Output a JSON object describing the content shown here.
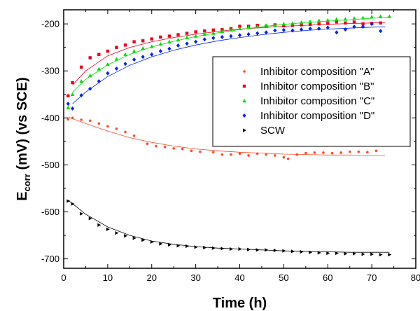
{
  "chart_data": {
    "type": "scatter",
    "xlabel": "Time (h)",
    "ylabel_main": "E",
    "ylabel_sub": "corr",
    "ylabel_rest": " (mV) (vs SCE)",
    "xlim": [
      0,
      80
    ],
    "ylim": [
      -720,
      -170
    ],
    "xticks": [
      0,
      10,
      20,
      30,
      40,
      50,
      60,
      70,
      80
    ],
    "yticks": [
      -700,
      -600,
      -500,
      -400,
      -300,
      -200
    ],
    "grid": false,
    "legend_position": "upper-right",
    "series": [
      {
        "name": "Inhibitor composition \"A\"",
        "color": "#ff4a24",
        "marker": "circle",
        "points": [
          [
            1,
            -403
          ],
          [
            2,
            -400
          ],
          [
            4,
            -404
          ],
          [
            6,
            -406
          ],
          [
            8,
            -412
          ],
          [
            10,
            -418
          ],
          [
            12,
            -423
          ],
          [
            14,
            -430
          ],
          [
            16,
            -438
          ],
          [
            19,
            -455
          ],
          [
            21,
            -460
          ],
          [
            23,
            -462
          ],
          [
            25,
            -465
          ],
          [
            27,
            -466
          ],
          [
            29,
            -470
          ],
          [
            31,
            -472
          ],
          [
            34,
            -473
          ],
          [
            36,
            -478
          ],
          [
            38,
            -478
          ],
          [
            40,
            -476
          ],
          [
            42,
            -480
          ],
          [
            44,
            -476
          ],
          [
            46,
            -478
          ],
          [
            48,
            -480
          ],
          [
            50,
            -484
          ],
          [
            51,
            -487
          ],
          [
            53,
            -478
          ],
          [
            55,
            -475
          ],
          [
            57,
            -474
          ],
          [
            59,
            -474
          ],
          [
            61,
            -475
          ],
          [
            63,
            -474
          ],
          [
            65,
            -472
          ],
          [
            67,
            -472
          ],
          [
            69,
            -473
          ],
          [
            71,
            -470
          ]
        ],
        "fit": [
          [
            1,
            -398
          ],
          [
            5,
            -412
          ],
          [
            10,
            -428
          ],
          [
            15,
            -442
          ],
          [
            20,
            -452
          ],
          [
            25,
            -460
          ],
          [
            30,
            -466
          ],
          [
            35,
            -470
          ],
          [
            40,
            -473
          ],
          [
            45,
            -475
          ],
          [
            50,
            -477
          ],
          [
            55,
            -478
          ],
          [
            60,
            -479
          ],
          [
            65,
            -479
          ],
          [
            70,
            -480
          ],
          [
            73,
            -480
          ]
        ]
      },
      {
        "name": "Inhibitor composition \"B\"",
        "color": "#e8001c",
        "marker": "square",
        "points": [
          [
            1,
            -353
          ],
          [
            2,
            -325
          ],
          [
            4,
            -292
          ],
          [
            6,
            -272
          ],
          [
            8,
            -265
          ],
          [
            10,
            -258
          ],
          [
            12,
            -250
          ],
          [
            14,
            -245
          ],
          [
            16,
            -238
          ],
          [
            18,
            -236
          ],
          [
            20,
            -232
          ],
          [
            22,
            -228
          ],
          [
            24,
            -226
          ],
          [
            26,
            -223
          ],
          [
            28,
            -220
          ],
          [
            30,
            -217
          ],
          [
            32,
            -215
          ],
          [
            34,
            -213
          ],
          [
            36,
            -212
          ],
          [
            38,
            -210
          ],
          [
            40,
            -205
          ],
          [
            42,
            -205
          ],
          [
            44,
            -203
          ],
          [
            46,
            -205
          ],
          [
            48,
            -202
          ],
          [
            50,
            -204
          ],
          [
            52,
            -203
          ],
          [
            54,
            -202
          ],
          [
            56,
            -201
          ],
          [
            58,
            -200
          ],
          [
            60,
            -199
          ],
          [
            62,
            -196
          ],
          [
            64,
            -198
          ],
          [
            66,
            -196
          ],
          [
            68,
            -200
          ],
          [
            70,
            -199
          ],
          [
            72,
            -198
          ]
        ],
        "fit": [
          [
            2,
            -330
          ],
          [
            5,
            -300
          ],
          [
            10,
            -268
          ],
          [
            15,
            -250
          ],
          [
            20,
            -238
          ],
          [
            25,
            -229
          ],
          [
            30,
            -222
          ],
          [
            35,
            -216
          ],
          [
            40,
            -211
          ],
          [
            45,
            -208
          ],
          [
            50,
            -205
          ],
          [
            55,
            -203
          ],
          [
            60,
            -201
          ],
          [
            65,
            -199
          ],
          [
            70,
            -198
          ],
          [
            73,
            -197
          ]
        ]
      },
      {
        "name": "Inhibitor composition \"C\"",
        "color": "#00dd00",
        "marker": "triangle",
        "points": [
          [
            1,
            -378
          ],
          [
            2,
            -350
          ],
          [
            4,
            -322
          ],
          [
            6,
            -310
          ],
          [
            8,
            -296
          ],
          [
            10,
            -286
          ],
          [
            12,
            -275
          ],
          [
            14,
            -265
          ],
          [
            16,
            -258
          ],
          [
            18,
            -252
          ],
          [
            20,
            -248
          ],
          [
            22,
            -243
          ],
          [
            24,
            -238
          ],
          [
            26,
            -234
          ],
          [
            28,
            -229
          ],
          [
            30,
            -226
          ],
          [
            32,
            -222
          ],
          [
            34,
            -220
          ],
          [
            36,
            -216
          ],
          [
            38,
            -213
          ],
          [
            40,
            -210
          ],
          [
            42,
            -207
          ],
          [
            44,
            -206
          ],
          [
            46,
            -203
          ],
          [
            48,
            -203
          ],
          [
            50,
            -200
          ],
          [
            52,
            -199
          ],
          [
            54,
            -197
          ],
          [
            56,
            -195
          ],
          [
            58,
            -193
          ],
          [
            60,
            -192
          ],
          [
            62,
            -190
          ],
          [
            64,
            -190
          ],
          [
            66,
            -188
          ],
          [
            68,
            -187
          ],
          [
            70,
            -185
          ],
          [
            72,
            -184
          ],
          [
            74,
            -184
          ]
        ],
        "fit": [
          [
            2,
            -345
          ],
          [
            5,
            -318
          ],
          [
            10,
            -287
          ],
          [
            15,
            -265
          ],
          [
            20,
            -249
          ],
          [
            25,
            -237
          ],
          [
            30,
            -227
          ],
          [
            35,
            -219
          ],
          [
            40,
            -212
          ],
          [
            45,
            -206
          ],
          [
            50,
            -201
          ],
          [
            55,
            -197
          ],
          [
            60,
            -194
          ],
          [
            65,
            -191
          ],
          [
            70,
            -188
          ],
          [
            74,
            -186
          ]
        ]
      },
      {
        "name": "Inhibitor composition \"D\"",
        "color": "#0022ee",
        "marker": "diamond",
        "points": [
          [
            1,
            -370
          ],
          [
            2,
            -380
          ],
          [
            4,
            -352
          ],
          [
            6,
            -338
          ],
          [
            8,
            -322
          ],
          [
            10,
            -305
          ],
          [
            12,
            -295
          ],
          [
            14,
            -285
          ],
          [
            16,
            -276
          ],
          [
            18,
            -270
          ],
          [
            20,
            -265
          ],
          [
            22,
            -258
          ],
          [
            24,
            -253
          ],
          [
            26,
            -246
          ],
          [
            28,
            -242
          ],
          [
            30,
            -238
          ],
          [
            32,
            -233
          ],
          [
            34,
            -230
          ],
          [
            36,
            -228
          ],
          [
            38,
            -226
          ],
          [
            40,
            -224
          ],
          [
            42,
            -222
          ],
          [
            44,
            -220
          ],
          [
            46,
            -218
          ],
          [
            48,
            -214
          ],
          [
            50,
            -213
          ],
          [
            52,
            -214
          ],
          [
            54,
            -212
          ],
          [
            56,
            -210
          ],
          [
            58,
            -210
          ],
          [
            60,
            -208
          ],
          [
            62,
            -218
          ],
          [
            64,
            -212
          ],
          [
            66,
            -206
          ],
          [
            68,
            -206
          ],
          [
            70,
            -200
          ],
          [
            72,
            -215
          ]
        ],
        "fit": [
          [
            2,
            -370
          ],
          [
            5,
            -345
          ],
          [
            10,
            -312
          ],
          [
            15,
            -288
          ],
          [
            20,
            -270
          ],
          [
            25,
            -256
          ],
          [
            30,
            -245
          ],
          [
            35,
            -236
          ],
          [
            40,
            -229
          ],
          [
            45,
            -223
          ],
          [
            50,
            -218
          ],
          [
            55,
            -214
          ],
          [
            60,
            -211
          ],
          [
            65,
            -209
          ],
          [
            70,
            -207
          ],
          [
            73,
            -206
          ]
        ]
      },
      {
        "name": "SCW",
        "color": "#000000",
        "marker": "right-triangle",
        "points": [
          [
            1,
            -577
          ],
          [
            2,
            -583
          ],
          [
            4,
            -604
          ],
          [
            6,
            -614
          ],
          [
            8,
            -628
          ],
          [
            10,
            -637
          ],
          [
            12,
            -645
          ],
          [
            14,
            -651
          ],
          [
            16,
            -656
          ],
          [
            18,
            -660
          ],
          [
            20,
            -664
          ],
          [
            22,
            -668
          ],
          [
            24,
            -670
          ],
          [
            26,
            -672
          ],
          [
            28,
            -673
          ],
          [
            30,
            -675
          ],
          [
            32,
            -676
          ],
          [
            34,
            -677
          ],
          [
            36,
            -678
          ],
          [
            38,
            -679
          ],
          [
            40,
            -679
          ],
          [
            42,
            -680
          ],
          [
            44,
            -681
          ],
          [
            46,
            -681
          ],
          [
            48,
            -682
          ],
          [
            50,
            -683
          ],
          [
            52,
            -684
          ],
          [
            54,
            -685
          ],
          [
            56,
            -686
          ],
          [
            58,
            -687
          ],
          [
            60,
            -688
          ],
          [
            62,
            -688
          ],
          [
            64,
            -689
          ],
          [
            66,
            -689
          ],
          [
            68,
            -690
          ],
          [
            70,
            -690
          ],
          [
            72,
            -691
          ],
          [
            74,
            -691
          ]
        ],
        "fit": [
          [
            1,
            -575
          ],
          [
            5,
            -605
          ],
          [
            10,
            -632
          ],
          [
            15,
            -650
          ],
          [
            20,
            -662
          ],
          [
            25,
            -669
          ],
          [
            30,
            -674
          ],
          [
            35,
            -677
          ],
          [
            40,
            -679
          ],
          [
            45,
            -681
          ],
          [
            50,
            -683
          ],
          [
            55,
            -684
          ],
          [
            60,
            -685
          ],
          [
            65,
            -686
          ],
          [
            70,
            -686
          ],
          [
            74,
            -686
          ]
        ]
      }
    ]
  }
}
